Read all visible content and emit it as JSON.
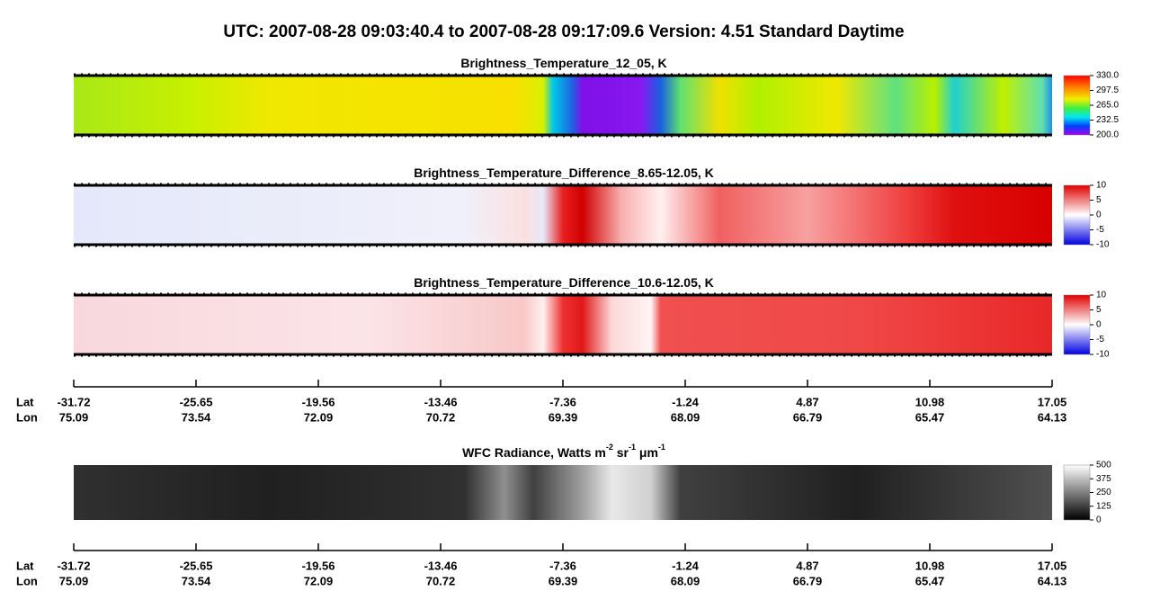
{
  "title": "UTC:  2007-08-28   09:03:40.4  to  2007-08-28   09:17:09.6    Version: 4.51  Standard Daytime",
  "panels": [
    {
      "title_parts": [
        "Brightness_Temperature_12_05, K"
      ],
      "colorbar_ticks": [
        "330.0",
        "297.5",
        "265.0",
        "232.5",
        "200.0"
      ]
    },
    {
      "title_parts": [
        "Brightness_Temperature_Difference_8.65-12.05, K"
      ],
      "colorbar_ticks": [
        "10",
        "5",
        "0",
        "-5",
        "-10"
      ]
    },
    {
      "title_parts": [
        "Brightness_Temperature_Difference_10.6-12.05, K"
      ],
      "colorbar_ticks": [
        "10",
        "5",
        "0",
        "-5",
        "-10"
      ]
    },
    {
      "title_parts": [
        "WFC Radiance, Watts m",
        "-2",
        " sr",
        "-1",
        " μm",
        "-1"
      ],
      "colorbar_ticks": [
        "500",
        "375",
        "250",
        "125",
        "0"
      ]
    }
  ],
  "axes": [
    {
      "lat_label": "Lat",
      "lon_label": "Lon",
      "lat": [
        "-31.72",
        "-25.65",
        "-19.56",
        "-13.46",
        "-7.36",
        "-1.24",
        "4.87",
        "10.98",
        "17.05"
      ],
      "lon": [
        "75.09",
        "73.54",
        "72.09",
        "70.72",
        "69.39",
        "68.09",
        "66.79",
        "65.47",
        "64.13"
      ]
    },
    {
      "lat_label": "Lat",
      "lon_label": "Lon",
      "lat": [
        "-31.72",
        "-25.65",
        "-19.56",
        "-13.46",
        "-7.36",
        "-1.24",
        "4.87",
        "10.98",
        "17.05"
      ],
      "lon": [
        "75.09",
        "73.54",
        "72.09",
        "70.72",
        "69.39",
        "68.09",
        "66.79",
        "65.47",
        "64.13"
      ]
    }
  ]
}
